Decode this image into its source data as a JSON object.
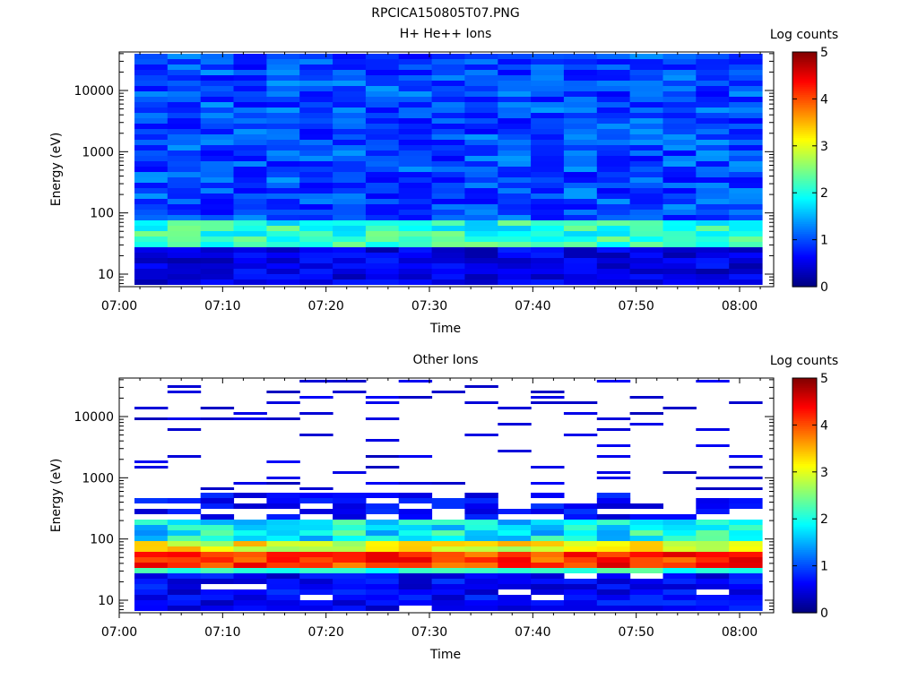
{
  "figure_title": "RPCICA150805T07.PNG",
  "colorbar_label": "Log counts",
  "chart_data": [
    {
      "type": "heatmap",
      "title": "H+ He++ Ions",
      "xlabel": "Time",
      "ylabel": "Energy (eV)",
      "y_scale": "log",
      "x_ticks": [
        "07:00",
        "07:10",
        "07:20",
        "07:30",
        "07:40",
        "07:50",
        "08:00"
      ],
      "y_ticks": [
        "10",
        "100",
        "1000",
        "10000"
      ],
      "colorbar": {
        "label": "Log counts",
        "range": [
          0,
          5
        ],
        "ticks": [
          "0",
          "1",
          "2",
          "3",
          "4",
          "5"
        ]
      },
      "colormap": [
        "#00007f",
        "#0000ff",
        "#007fff",
        "#00ffff",
        "#7fff7f",
        "#ffff00",
        "#ff7f00",
        "#ff0000",
        "#7f0000"
      ],
      "time_range": [
        "07:01",
        "08:02"
      ],
      "energy_range_eV": [
        6,
        42000
      ],
      "grid": false,
      "description": "Background mostly 0.6–1.3 log counts across 7–40000 eV; brighter cyan/green band (~1.7–2.5) near 40–60 eV; darker 0.2–0.6 below 30 eV."
    },
    {
      "type": "heatmap",
      "title": "Other Ions",
      "xlabel": "Time",
      "ylabel": "Energy (eV)",
      "y_scale": "log",
      "x_ticks": [
        "07:00",
        "07:10",
        "07:20",
        "07:30",
        "07:40",
        "07:50",
        "08:00"
      ],
      "y_ticks": [
        "10",
        "100",
        "1000",
        "10000"
      ],
      "colorbar": {
        "label": "Log counts",
        "range": [
          0,
          5
        ],
        "ticks": [
          "0",
          "1",
          "2",
          "3",
          "4",
          "5"
        ]
      },
      "colormap": [
        "#00007f",
        "#0000ff",
        "#007fff",
        "#00ffff",
        "#7fff7f",
        "#ffff00",
        "#ff7f00",
        "#ff0000",
        "#7f0000"
      ],
      "time_range": [
        "07:01",
        "08:02"
      ],
      "energy_range_eV": [
        6,
        42000
      ],
      "grid": false,
      "description": "Sparse low counts (~0.3) above ~500 eV with white (no data) gaps; strong red/orange band (~4–4.5) at 30–60 eV fading to yellow/green toward 100–200 eV; low counts below 25 eV."
    }
  ]
}
